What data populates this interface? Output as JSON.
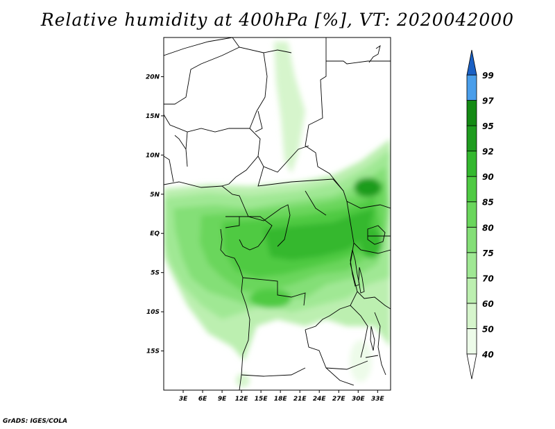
{
  "title": "Relative humidity at 400hPa [%], VT: 2020042000",
  "credit": "GrADS: IGES/COLA",
  "map": {
    "lat_range": [
      -20,
      25
    ],
    "lon_range": [
      0,
      35
    ],
    "lat_ticks": [
      {
        "value": 20,
        "label": "20N"
      },
      {
        "value": 15,
        "label": "15N"
      },
      {
        "value": 10,
        "label": "10N"
      },
      {
        "value": 5,
        "label": "5N"
      },
      {
        "value": 0,
        "label": "EQ"
      },
      {
        "value": -5,
        "label": "5S"
      },
      {
        "value": -10,
        "label": "10S"
      },
      {
        "value": -15,
        "label": "15S"
      }
    ],
    "lon_ticks": [
      {
        "value": 3,
        "label": "3E"
      },
      {
        "value": 6,
        "label": "6E"
      },
      {
        "value": 9,
        "label": "9E"
      },
      {
        "value": 12,
        "label": "12E"
      },
      {
        "value": 15,
        "label": "15E"
      },
      {
        "value": 18,
        "label": "18E"
      },
      {
        "value": 21,
        "label": "21E"
      },
      {
        "value": 24,
        "label": "24E"
      },
      {
        "value": 27,
        "label": "27E"
      },
      {
        "value": 30,
        "label": "30E"
      },
      {
        "value": 33,
        "label": "33E"
      }
    ]
  },
  "colorbar": {
    "levels": [
      {
        "label": "40",
        "color": "#edfbe9"
      },
      {
        "label": "50",
        "color": "#d6f5cc"
      },
      {
        "label": "60",
        "color": "#bcefb0"
      },
      {
        "label": "70",
        "color": "#a0e894"
      },
      {
        "label": "75",
        "color": "#84df77"
      },
      {
        "label": "80",
        "color": "#6ad65c"
      },
      {
        "label": "85",
        "color": "#4fca43"
      },
      {
        "label": "90",
        "color": "#34b82f"
      },
      {
        "label": "92",
        "color": "#1f9c1f"
      },
      {
        "label": "95",
        "color": "#148a14"
      },
      {
        "label": "97",
        "color": "#4a9eea"
      },
      {
        "label": "99",
        "color": "#2b7ee0"
      }
    ],
    "bottom_color": "#ffffff",
    "top_color": "#1a60c4"
  }
}
